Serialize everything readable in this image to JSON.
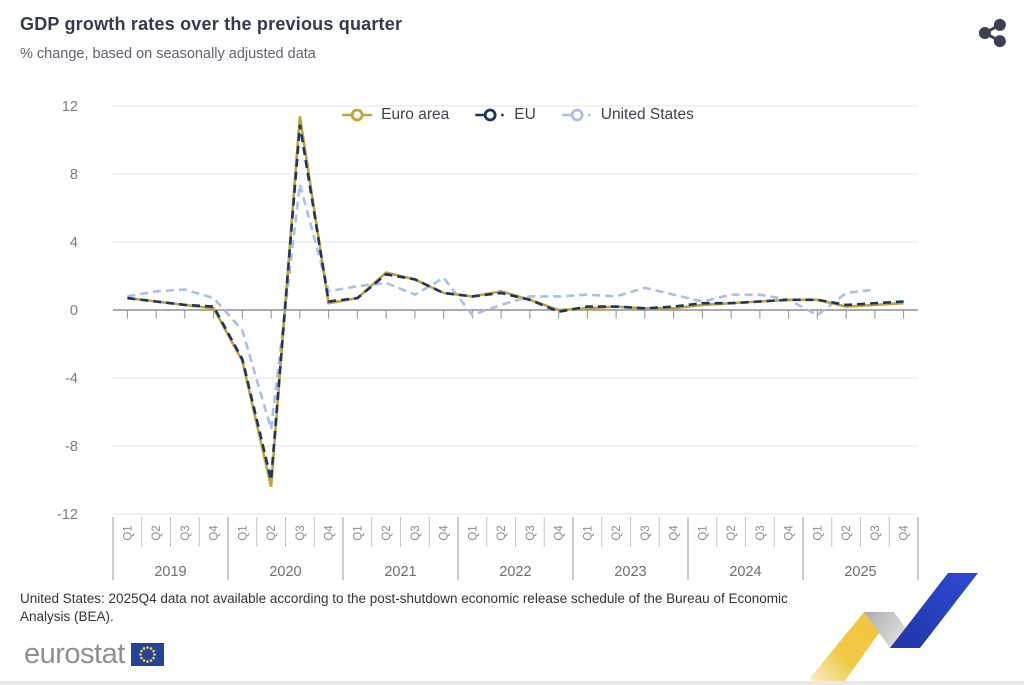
{
  "header": {
    "title": "GDP growth rates over the previous quarter",
    "subtitle": "% change, based on seasonally adjusted data"
  },
  "toolbar": {
    "share_icon": "share-nodes"
  },
  "chart_data": {
    "type": "line",
    "title": "GDP growth rates over the previous quarter",
    "ylabel": "% change",
    "ylim": [
      -12,
      12
    ],
    "yticks": [
      12,
      8,
      4,
      0,
      -4,
      -8,
      -12
    ],
    "grid": "horizontal-only",
    "legend_position": "top-center",
    "years": [
      "2019",
      "2020",
      "2021",
      "2022",
      "2023",
      "2024",
      "2025"
    ],
    "quarter_labels": [
      "Q1",
      "Q2",
      "Q3",
      "Q4"
    ],
    "series": [
      {
        "name": "Euro area",
        "color": "#C2A33B",
        "line_style": "solid",
        "values": [
          0.7,
          0.5,
          0.3,
          0.1,
          -3.0,
          -10.4,
          11.4,
          0.4,
          0.7,
          2.2,
          1.8,
          1.0,
          0.8,
          1.1,
          0.6,
          0.0,
          0.1,
          0.2,
          0.1,
          0.1,
          0.3,
          0.4,
          0.5,
          0.6,
          0.6,
          0.2,
          0.3,
          0.4
        ]
      },
      {
        "name": "EU",
        "color": "#1C3664",
        "line_style": "dashed",
        "values": [
          0.7,
          0.5,
          0.3,
          0.2,
          -2.9,
          -10.0,
          10.9,
          0.5,
          0.7,
          2.1,
          1.8,
          1.0,
          0.8,
          1.0,
          0.6,
          -0.1,
          0.2,
          0.2,
          0.1,
          0.2,
          0.4,
          0.4,
          0.5,
          0.6,
          0.6,
          0.3,
          0.4,
          0.5
        ]
      },
      {
        "name": "United States",
        "color": "#A9C0E8",
        "line_style": "dashed",
        "values": [
          0.8,
          1.1,
          1.2,
          0.7,
          -1.2,
          -7.0,
          7.4,
          1.1,
          1.4,
          1.6,
          0.9,
          1.9,
          -0.3,
          0.3,
          0.8,
          0.8,
          0.9,
          0.8,
          1.3,
          0.9,
          0.5,
          0.9,
          0.9,
          0.6,
          -0.3,
          1.0,
          1.2,
          null
        ]
      }
    ]
  },
  "footnote": {
    "text": "United States: 2025Q4 data not available according to the post-shutdown economic release schedule of the Bureau of Economic Analysis (BEA)."
  },
  "branding": {
    "logo_text": "eurostat",
    "flag_icon": "eu-flag",
    "flag_colors": {
      "blue": "#24439B",
      "yellow": "#FFD617"
    }
  },
  "decor": {
    "ribbon_icon": "upward-trend-ribbon",
    "ribbon_yellow": "#EFC63F",
    "ribbon_blue": "#2B45C4"
  }
}
